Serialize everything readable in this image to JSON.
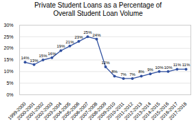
{
  "chart_data": {
    "type": "line",
    "title": "Private Student Loans as a Percentage of\nOverall Student Loan Volume",
    "categories": [
      "1999-2000",
      "2000-2001",
      "2001-2002",
      "2002-2003",
      "2003-2004",
      "2004-2005",
      "2005-2006",
      "2006-2007",
      "2007-2008",
      "2008-2009",
      "2009-2010",
      "2010-2011",
      "2011-2012",
      "2012-2013",
      "2013-2014",
      "2014-2015",
      "2015-2016",
      "2016-2017",
      "2017-2018"
    ],
    "values": [
      14,
      13,
      15,
      16,
      19,
      21,
      23,
      25,
      24,
      12,
      8,
      7,
      7,
      8,
      9,
      10,
      10,
      11,
      11
    ],
    "value_labels": [
      "14%",
      "13%",
      "15%",
      "16%",
      "19%",
      "21%",
      "23%",
      "25%",
      "24%",
      "12%",
      "8%",
      "7%",
      "7%",
      "8%",
      "9%",
      "10%",
      "10%",
      "11%",
      "11%"
    ],
    "data_labels": true,
    "color": "#3050a0",
    "marker": "circle",
    "ylim": [
      0,
      30
    ],
    "yticks": [
      {
        "value": 0,
        "label": "0%"
      },
      {
        "value": 5,
        "label": "5%"
      },
      {
        "value": 10,
        "label": "10%"
      },
      {
        "value": 15,
        "label": "15%"
      },
      {
        "value": 20,
        "label": "20%"
      },
      {
        "value": 25,
        "label": "25%"
      },
      {
        "value": 30,
        "label": "30%"
      }
    ],
    "grid": true
  }
}
